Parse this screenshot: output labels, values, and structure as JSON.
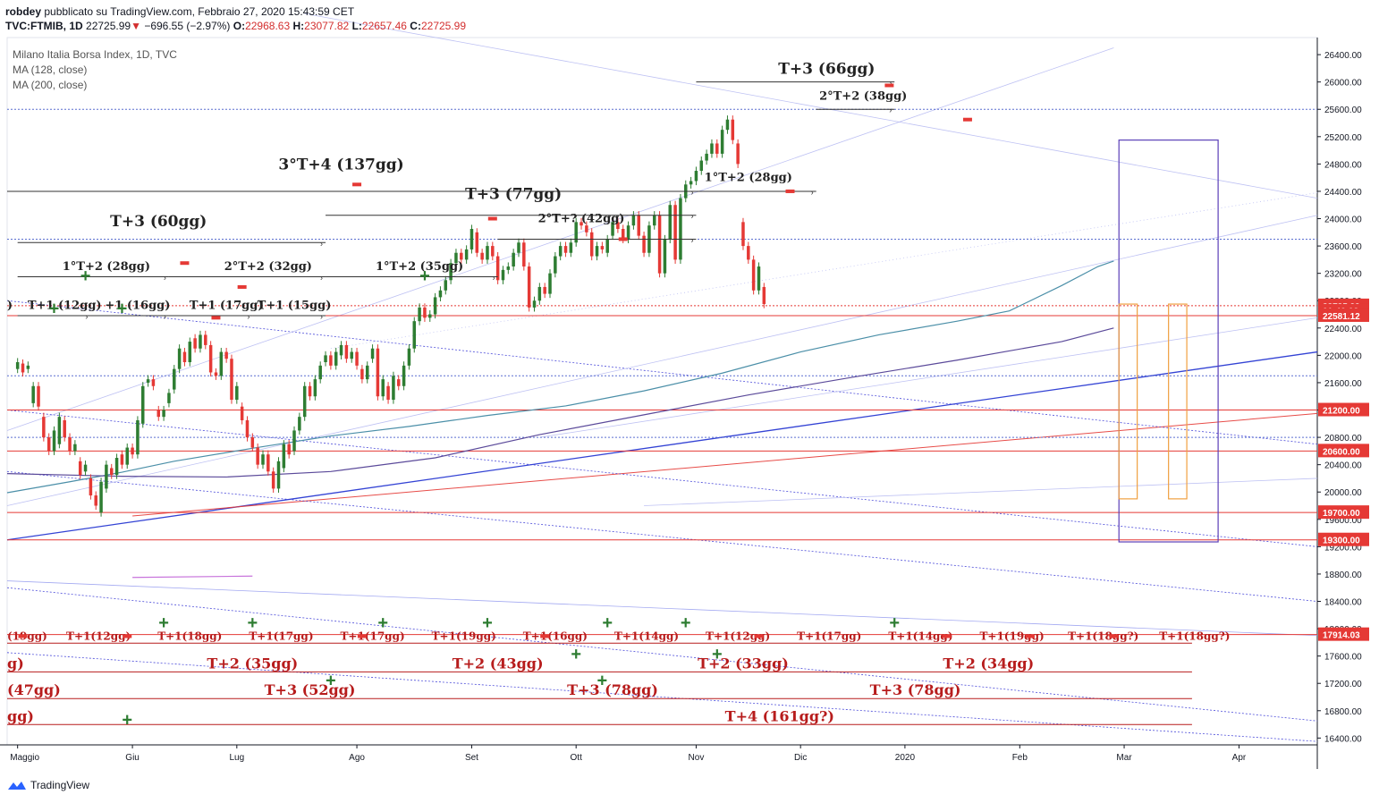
{
  "header": {
    "author": "robdey",
    "published": "pubblicato su TradingView.com, Febbraio 27, 2020 15:43:59 CET",
    "symbol": "TVC:FTMIB, 1D",
    "last": "22725.99",
    "change": "−696.55 (−2.97%)",
    "o_label": "O:",
    "o": "22968.63",
    "h_label": "H:",
    "h": "23077.82",
    "l_label": "L:",
    "l": "22657.46",
    "c_label": "C:",
    "c": "22725.99"
  },
  "legend": {
    "title": "Milano Italia Borsa Index, 1D, TVC",
    "ma1": "MA (128, close)",
    "ma2": "MA (200, close)"
  },
  "brand": {
    "name": "TradingView",
    "icon": "tradingview-logo-icon"
  },
  "colors": {
    "up": "#2e7d32",
    "down": "#e53935",
    "hline": "#e53935",
    "cycle": "#b71c1c",
    "ma128": "#4b8fa8",
    "ma200": "#5b4a9a",
    "trend_blue": "#1e2fd0",
    "box_violet": "#5b3fb8",
    "box_orange": "#f0a040",
    "plus_green": "#2e7d32",
    "minus_red": "#e53935"
  },
  "chart_data": {
    "type": "candlestick",
    "ylim": [
      16300,
      26650
    ],
    "y_ticks": [
      16400,
      16800,
      17200,
      17600,
      18000,
      18400,
      18800,
      19200,
      19600,
      20000,
      20400,
      20800,
      21200,
      21600,
      22000,
      22400,
      22800,
      23200,
      23600,
      24000,
      24400,
      24800,
      25200,
      25600,
      26000,
      26400
    ],
    "y_tick_labels": [
      "16400.00",
      "16800.00",
      "17200.00",
      "17600.00",
      "18000.00",
      "18400.00",
      "18800.00",
      "19200.00",
      "19600.00",
      "20000.00",
      "20400.00",
      "20800.00",
      "21200.00",
      "21600.00",
      "22000.00",
      "22400.00",
      "22800.00",
      "23200.00",
      "23600.00",
      "24000.00",
      "24400.00",
      "24800.00",
      "25200.00",
      "25600.00",
      "26000.00",
      "26400.00"
    ],
    "x_ticks": [
      {
        "label": "Maggio",
        "day": 0
      },
      {
        "label": "Giu",
        "day": 22
      },
      {
        "label": "Lug",
        "day": 42
      },
      {
        "label": "Ago",
        "day": 65
      },
      {
        "label": "Set",
        "day": 87
      },
      {
        "label": "Ott",
        "day": 107
      },
      {
        "label": "Nov",
        "day": 130
      },
      {
        "label": "Dic",
        "day": 150
      },
      {
        "label": "2020",
        "day": 170
      },
      {
        "label": "Feb",
        "day": 192
      },
      {
        "label": "Mar",
        "day": 212
      },
      {
        "label": "Apr",
        "day": 234
      }
    ],
    "x_range_days": [
      -2,
      249
    ],
    "price_labels": [
      {
        "text": "22725.99",
        "value": 22725.99,
        "style": "last"
      },
      {
        "text": "01:46:02",
        "value": 22650,
        "style": "timer"
      },
      {
        "text": "22581.12",
        "value": 22581.12,
        "style": "red"
      },
      {
        "text": "21200.00",
        "value": 21200,
        "style": "red"
      },
      {
        "text": "20600.00",
        "value": 20600,
        "style": "red"
      },
      {
        "text": "19700.00",
        "value": 19700,
        "style": "red"
      },
      {
        "text": "19300.00",
        "value": 19300,
        "style": "red"
      },
      {
        "text": "17914.03",
        "value": 17914.03,
        "style": "red"
      }
    ],
    "horizontal_levels": [
      22581.12,
      21200,
      20600,
      19700,
      19300,
      17914.03
    ],
    "dotted_levels": [
      25600,
      23700,
      22725.99,
      21700,
      20800
    ],
    "ma128": [
      [
        -2,
        19990
      ],
      [
        10,
        20150
      ],
      [
        20,
        20290
      ],
      [
        30,
        20450
      ],
      [
        45,
        20640
      ],
      [
        60,
        20820
      ],
      [
        75,
        20960
      ],
      [
        90,
        21120
      ],
      [
        105,
        21260
      ],
      [
        120,
        21480
      ],
      [
        135,
        21740
      ],
      [
        150,
        22050
      ],
      [
        165,
        22300
      ],
      [
        180,
        22500
      ],
      [
        190,
        22650
      ],
      [
        200,
        23020
      ],
      [
        207,
        23300
      ],
      [
        210,
        23380
      ]
    ],
    "ma200": [
      [
        -2,
        20270
      ],
      [
        20,
        20230
      ],
      [
        40,
        20220
      ],
      [
        60,
        20300
      ],
      [
        80,
        20500
      ],
      [
        100,
        20840
      ],
      [
        120,
        21130
      ],
      [
        140,
        21420
      ],
      [
        160,
        21680
      ],
      [
        180,
        21930
      ],
      [
        200,
        22200
      ],
      [
        210,
        22400
      ]
    ],
    "candles": [
      [
        0,
        21800,
        21900
      ],
      [
        1,
        21880,
        21750
      ],
      [
        2,
        21800,
        21850
      ],
      [
        3,
        21300,
        21550
      ],
      [
        4,
        21550,
        21250
      ],
      [
        5,
        21100,
        20800
      ],
      [
        6,
        20800,
        20600
      ],
      [
        7,
        20600,
        20900
      ],
      [
        8,
        20700,
        21100
      ],
      [
        9,
        21050,
        20800
      ],
      [
        10,
        20800,
        20600
      ],
      [
        11,
        20600,
        20700
      ],
      [
        12,
        20450,
        20250
      ],
      [
        13,
        20300,
        20400
      ],
      [
        14,
        20200,
        19950
      ],
      [
        15,
        19950,
        19800
      ],
      [
        16,
        19700,
        20150
      ],
      [
        17,
        20050,
        20400
      ],
      [
        18,
        20350,
        20250
      ],
      [
        19,
        20250,
        20500
      ],
      [
        20,
        20550,
        20400
      ],
      [
        21,
        20400,
        20650
      ],
      [
        22,
        20650,
        20550
      ],
      [
        23,
        20550,
        21050
      ],
      [
        24,
        21000,
        21550
      ],
      [
        25,
        21600,
        21650
      ],
      [
        26,
        21650,
        21550
      ],
      [
        27,
        21200,
        21100
      ],
      [
        28,
        21100,
        21200
      ],
      [
        29,
        21300,
        21450
      ],
      [
        30,
        21500,
        21800
      ],
      [
        31,
        21800,
        22100
      ],
      [
        32,
        22050,
        21900
      ],
      [
        33,
        21900,
        22200
      ],
      [
        34,
        22250,
        22100
      ],
      [
        35,
        22100,
        22300
      ],
      [
        36,
        22300,
        22150
      ],
      [
        37,
        22150,
        21750
      ],
      [
        38,
        21750,
        21700
      ],
      [
        39,
        21700,
        22050
      ],
      [
        40,
        22050,
        21950
      ],
      [
        41,
        21950,
        21350
      ],
      [
        42,
        21350,
        21550
      ],
      [
        43,
        21250,
        21050
      ],
      [
        44,
        21050,
        20800
      ],
      [
        45,
        20800,
        20650
      ],
      [
        46,
        20650,
        20400
      ],
      [
        47,
        20400,
        20550
      ],
      [
        48,
        20550,
        20300
      ],
      [
        49,
        20300,
        20050
      ],
      [
        50,
        20050,
        20450
      ],
      [
        51,
        20350,
        20700
      ],
      [
        52,
        20700,
        20550
      ],
      [
        53,
        20600,
        20900
      ],
      [
        54,
        20900,
        21100
      ],
      [
        55,
        21100,
        21550
      ],
      [
        56,
        21550,
        21400
      ],
      [
        57,
        21400,
        21650
      ],
      [
        58,
        21650,
        21850
      ],
      [
        59,
        21900,
        22000
      ],
      [
        60,
        22000,
        21850
      ],
      [
        61,
        21850,
        22050
      ],
      [
        62,
        22000,
        22150
      ],
      [
        63,
        22150,
        21950
      ],
      [
        64,
        21950,
        22050
      ],
      [
        65,
        22050,
        21850
      ],
      [
        66,
        21800,
        21650
      ],
      [
        67,
        21650,
        21850
      ],
      [
        68,
        21950,
        22100
      ],
      [
        69,
        22100,
        21400
      ],
      [
        70,
        21400,
        21650
      ],
      [
        71,
        21550,
        21350
      ],
      [
        72,
        21350,
        21700
      ],
      [
        73,
        21650,
        21550
      ],
      [
        74,
        21550,
        21850
      ],
      [
        75,
        21850,
        22100
      ],
      [
        76,
        22100,
        22500
      ],
      [
        77,
        22500,
        22700
      ],
      [
        78,
        22700,
        22550
      ],
      [
        79,
        22550,
        22600
      ],
      [
        80,
        22600,
        22850
      ],
      [
        81,
        22850,
        22950
      ],
      [
        82,
        22950,
        23100
      ],
      [
        83,
        23100,
        23350
      ],
      [
        84,
        23350,
        23500
      ],
      [
        85,
        23500,
        23400
      ],
      [
        86,
        23400,
        23550
      ],
      [
        87,
        23550,
        23850
      ],
      [
        88,
        23800,
        23500
      ],
      [
        89,
        23500,
        23400
      ],
      [
        90,
        23400,
        23600
      ],
      [
        91,
        23600,
        23450
      ],
      [
        92,
        23450,
        23100
      ],
      [
        93,
        23100,
        23250
      ],
      [
        94,
        23250,
        23300
      ],
      [
        95,
        23300,
        23500
      ],
      [
        96,
        23500,
        23650
      ],
      [
        97,
        23650,
        23300
      ],
      [
        98,
        23300,
        22700
      ],
      [
        99,
        22700,
        22800
      ],
      [
        100,
        22800,
        23000
      ],
      [
        101,
        23000,
        22900
      ],
      [
        102,
        22900,
        23200
      ],
      [
        103,
        23200,
        23450
      ],
      [
        104,
        23450,
        23600
      ],
      [
        105,
        23600,
        23500
      ],
      [
        106,
        23500,
        23650
      ],
      [
        107,
        23650,
        23950
      ],
      [
        108,
        23950,
        23900
      ],
      [
        109,
        23900,
        23800
      ],
      [
        110,
        23800,
        23450
      ],
      [
        111,
        23450,
        23600
      ],
      [
        112,
        23600,
        23550
      ],
      [
        113,
        23500,
        23700
      ],
      [
        114,
        23750,
        23950
      ],
      [
        115,
        23950,
        23850
      ],
      [
        116,
        23850,
        23700
      ],
      [
        117,
        23700,
        23900
      ],
      [
        118,
        23900,
        24050
      ],
      [
        119,
        24050,
        23750
      ],
      [
        120,
        23750,
        23500
      ],
      [
        121,
        23500,
        23900
      ],
      [
        122,
        23900,
        24050
      ],
      [
        123,
        24050,
        23200
      ],
      [
        124,
        23200,
        23700
      ],
      [
        125,
        23700,
        24200
      ],
      [
        126,
        24200,
        23400
      ],
      [
        127,
        23400,
        24300
      ],
      [
        128,
        24300,
        24500
      ],
      [
        129,
        24500,
        24550
      ],
      [
        130,
        24550,
        24700
      ],
      [
        131,
        24700,
        24850
      ],
      [
        132,
        24850,
        24950
      ],
      [
        133,
        24950,
        25100
      ],
      [
        134,
        25100,
        24950
      ],
      [
        135,
        24950,
        25300
      ],
      [
        136,
        25300,
        25450
      ],
      [
        137,
        25450,
        25150
      ],
      [
        138,
        25100,
        24800
      ],
      [
        139,
        23950,
        23600
      ],
      [
        140,
        23600,
        23400
      ],
      [
        141,
        23400,
        22950
      ],
      [
        142,
        22950,
        23300
      ],
      [
        143,
        23000,
        22750
      ]
    ]
  },
  "annotations": {
    "upper": [
      {
        "text": "T+3 (66gg)",
        "day": 155,
        "y": 26120
      },
      {
        "text": "2°T+2 (38gg)",
        "day": 162,
        "y": 25740
      },
      {
        "text": "3°T+4 (137gg)",
        "day": 62,
        "y": 24720
      },
      {
        "text": "1°T+2 (28gg)",
        "day": 140,
        "y": 24550
      },
      {
        "text": "T+3 (77gg)",
        "day": 95,
        "y": 24290
      },
      {
        "text": "2°T+? (42gg)",
        "day": 108,
        "y": 23950
      },
      {
        "text": "T+3 (60gg)",
        "day": 27,
        "y": 23890
      },
      {
        "text": "1°T+2 (28gg)",
        "day": 17,
        "y": 23250
      },
      {
        "text": "2°T+2 (32gg)",
        "day": 48,
        "y": 23250
      },
      {
        "text": "1°T+2 (35gg)",
        "day": 77,
        "y": 23250
      },
      {
        "text": "T+1 (12gg)",
        "day": 9,
        "y": 22680
      },
      {
        "text": "+1 (16gg)",
        "day": 23,
        "y": 22680
      },
      {
        "text": "T+1 (17gg)",
        "day": 40,
        "y": 22680
      },
      {
        "text": "T+1 (15gg)",
        "day": 53,
        "y": 22680
      },
      {
        "text": ")",
        "day": -1.5,
        "y": 22680
      }
    ],
    "lower_row1": [
      "(19gg)",
      "T+1(12gg)",
      "T+1(18gg)",
      "T+1(17gg)",
      "T+1(17gg)",
      "T+1(19gg)",
      "T+1(16gg)",
      "T+1(14gg)",
      "T+1(12gg)",
      "T+1(17gg)",
      "T+1(14gg)",
      "T+1(19gg)",
      "T+1(18gg?)",
      "T+1(18gg?)"
    ],
    "lower_row2": [
      "g)",
      "T+2 (35gg)",
      "T+2 (43gg)",
      "T+2 (33gg)",
      "T+2 (34gg)"
    ],
    "lower_row3": [
      "(47gg)",
      "T+3 (52gg)",
      "T+3 (78gg)",
      "T+3 (78gg)"
    ],
    "lower_row4": [
      "gg)",
      "T+4 (161gg?)"
    ]
  }
}
